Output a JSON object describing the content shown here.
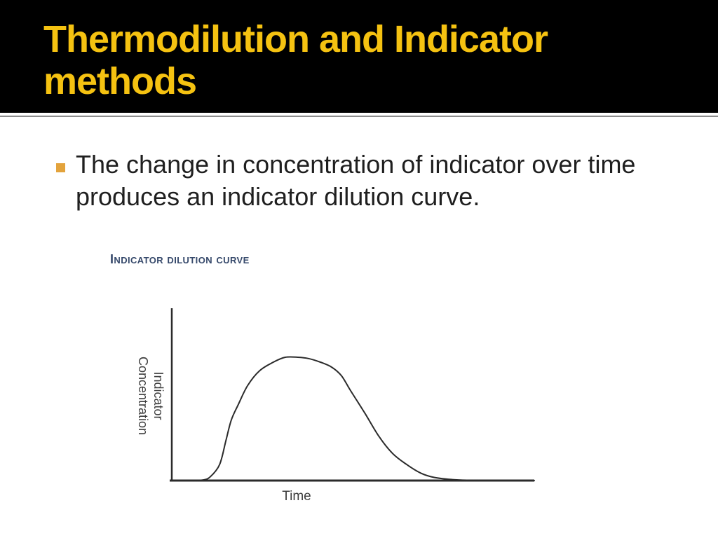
{
  "slide": {
    "header": {
      "title": "Thermodilution and Indicator methods",
      "title_color": "#F5C211",
      "background_color": "#000000",
      "divider_color": "#8c8c8c"
    },
    "bullets": [
      {
        "text": "The change in concentration of indicator over time produces an indicator dilution curve.",
        "marker_color": "#E3A33C"
      }
    ]
  },
  "figure": {
    "title": "Indicator dilution curve",
    "title_color": "#36496B",
    "ylabel": "Indicator\nConcentration",
    "xlabel": "Time",
    "line_color": "#2b2b2b"
  },
  "chart_data": {
    "type": "line",
    "title": "Indicator dilution curve",
    "xlabel": "Time",
    "ylabel": "Indicator Concentration",
    "axis_tick_labels": "none",
    "grid": false,
    "legend": false,
    "x_unit": "relative (fraction of time axis)",
    "y_unit": "relative concentration (0-1)",
    "xlim": [
      0,
      1
    ],
    "ylim": [
      0,
      1
    ],
    "description": "Bell-shaped indicator dilution curve: flat baseline, steep rise, rounded peak, slower decay with long tail back to baseline.",
    "series": [
      {
        "name": "Indicator concentration",
        "x": [
          0.06,
          0.087,
          0.106,
          0.132,
          0.149,
          0.164,
          0.184,
          0.209,
          0.242,
          0.28,
          0.313,
          0.348,
          0.377,
          0.41,
          0.441,
          0.468,
          0.493,
          0.532,
          0.571,
          0.609,
          0.648,
          0.687,
          0.725,
          0.774,
          0.82,
          0.87,
          1.0
        ],
        "y": [
          0,
          0.005,
          0.03,
          0.13,
          0.32,
          0.49,
          0.62,
          0.77,
          0.89,
          0.96,
          1.0,
          1.0,
          0.99,
          0.96,
          0.92,
          0.85,
          0.73,
          0.55,
          0.36,
          0.22,
          0.13,
          0.06,
          0.025,
          0.008,
          0.002,
          0,
          0
        ]
      }
    ]
  }
}
